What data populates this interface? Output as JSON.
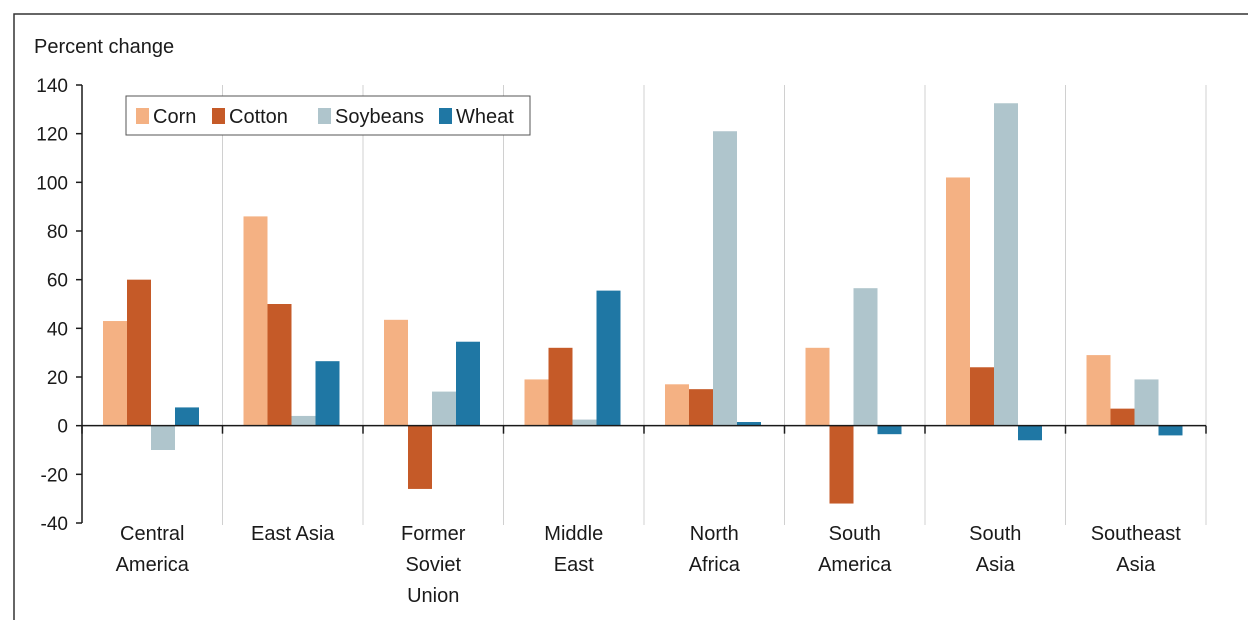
{
  "chart_data": {
    "type": "bar",
    "title": "",
    "ylabel": "Percent change",
    "xlabel": "",
    "ylim": [
      -40,
      140
    ],
    "yticks": [
      140,
      120,
      100,
      80,
      60,
      40,
      20,
      0,
      -20,
      -40
    ],
    "grid": false,
    "legend_position": "top-left",
    "categories": [
      [
        "Central",
        "America"
      ],
      [
        "East Asia"
      ],
      [
        "Former",
        "Soviet",
        "Union"
      ],
      [
        "Middle",
        "East"
      ],
      [
        "North",
        "Africa"
      ],
      [
        "South",
        "America"
      ],
      [
        "South",
        "Asia"
      ],
      [
        "Southeast",
        "Asia"
      ]
    ],
    "series": [
      {
        "name": "Corn",
        "color": "#f4b183",
        "values": [
          43,
          86,
          43.5,
          19,
          17,
          32,
          102,
          29
        ]
      },
      {
        "name": "Cotton",
        "color": "#c55a28",
        "values": [
          60,
          50,
          -26,
          32,
          15,
          -32,
          24,
          7
        ]
      },
      {
        "name": "Soybeans",
        "color": "#afc5cc",
        "values": [
          -10,
          4,
          14,
          2.5,
          121,
          56.5,
          132.5,
          19
        ]
      },
      {
        "name": "Wheat",
        "color": "#1f77a4",
        "values": [
          7.5,
          26.5,
          34.5,
          55.5,
          1.5,
          -3.5,
          -6,
          -4
        ]
      }
    ]
  }
}
